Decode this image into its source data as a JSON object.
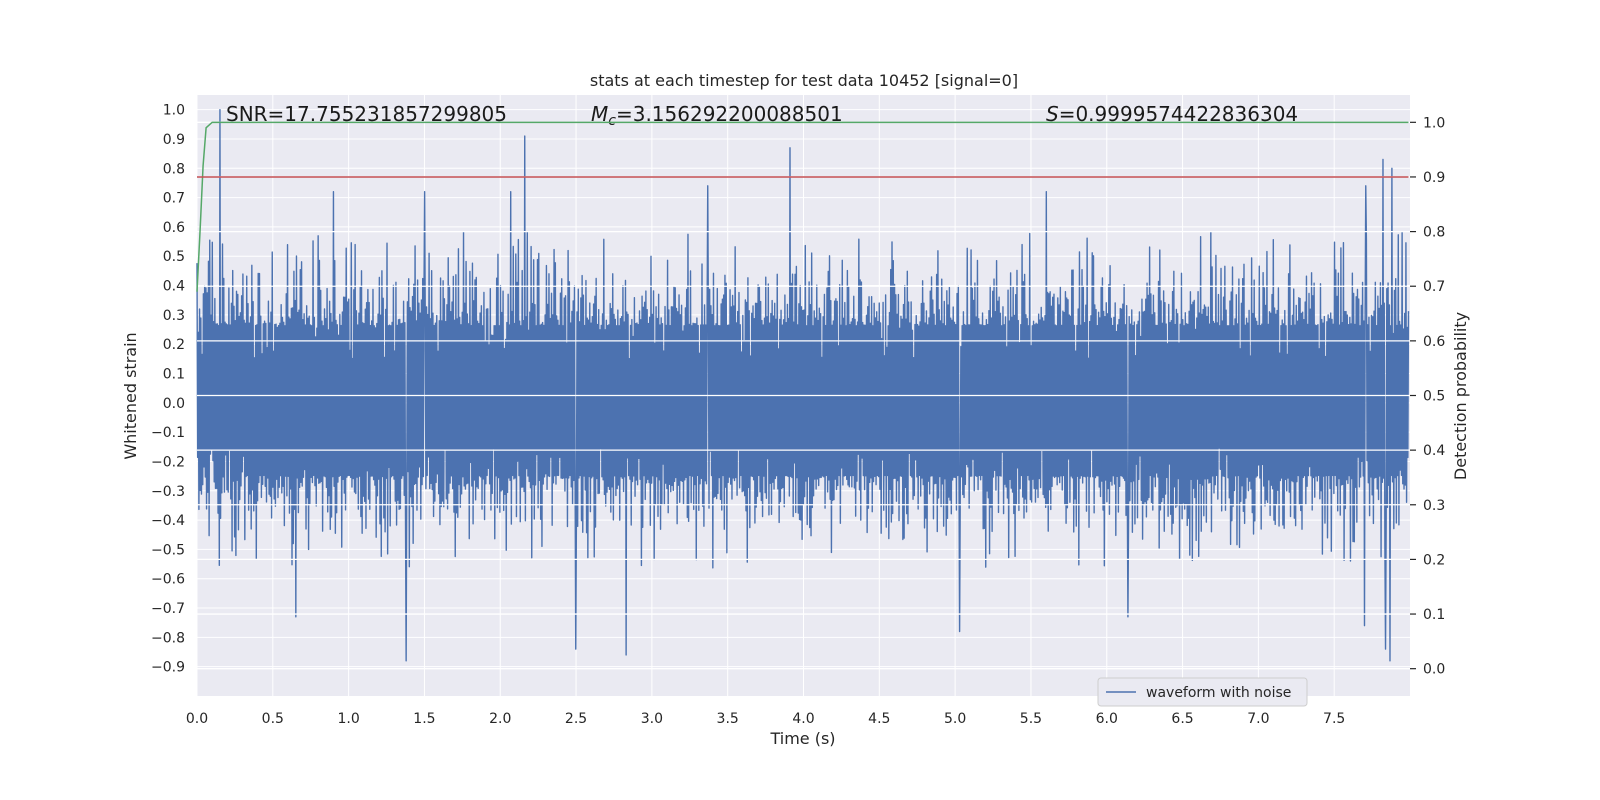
{
  "chart_data": {
    "type": "line",
    "title": "stats at each timestep for test data 10452 [signal=0]",
    "xlabel": "Time (s)",
    "ylabel": "Whitened strain",
    "y2label": "Detection probability",
    "xlim": [
      0.0,
      8.0
    ],
    "ylim": [
      -1.0,
      1.05
    ],
    "y2lim": [
      -0.05,
      1.05
    ],
    "xticks": [
      0.0,
      0.5,
      1.0,
      1.5,
      2.0,
      2.5,
      3.0,
      3.5,
      4.0,
      4.5,
      5.0,
      5.5,
      6.0,
      6.5,
      7.0,
      7.5
    ],
    "yticks": [
      -0.9,
      -0.8,
      -0.7,
      -0.6,
      -0.5,
      -0.4,
      -0.3,
      -0.2,
      -0.1,
      0.0,
      0.1,
      0.2,
      0.3,
      0.4,
      0.5,
      0.6,
      0.7,
      0.8,
      0.9,
      1.0
    ],
    "y2ticks": [
      0.0,
      0.1,
      0.2,
      0.3,
      0.4,
      0.5,
      0.6,
      0.7,
      0.8,
      0.9,
      1.0
    ],
    "grid": true,
    "legend_position": "lower-right",
    "annotations": {
      "snr": "SNR=17.755231857299805",
      "mc_symbol": "M",
      "mc_sub": "c",
      "mc_value": "=3.156292200088501",
      "s_symbol": "S",
      "s_value": "=0.9999574422836304"
    },
    "series": [
      {
        "name": "waveform with noise",
        "axis": "left",
        "color": "#4c72b0",
        "kind": "noise-envelope",
        "t_range": [
          0.0,
          7.99
        ],
        "typical_amplitude": [
          -0.33,
          0.35
        ],
        "peaks": [
          {
            "t": 0.15,
            "v": 1.0
          },
          {
            "t": 2.16,
            "v": 0.91
          },
          {
            "t": 3.91,
            "v": 0.87
          },
          {
            "t": 7.82,
            "v": 0.83
          },
          {
            "t": 7.88,
            "v": 0.8
          },
          {
            "t": 7.71,
            "v": 0.74
          },
          {
            "t": 0.9,
            "v": 0.72
          },
          {
            "t": 1.5,
            "v": 0.72
          },
          {
            "t": 2.07,
            "v": 0.72
          },
          {
            "t": 3.37,
            "v": 0.74
          },
          {
            "t": 5.6,
            "v": 0.72
          },
          {
            "t": 1.38,
            "v": -0.88
          },
          {
            "t": 2.83,
            "v": -0.86
          },
          {
            "t": 2.5,
            "v": -0.84
          },
          {
            "t": 7.84,
            "v": -0.84
          },
          {
            "t": 7.87,
            "v": -0.88
          },
          {
            "t": 5.03,
            "v": -0.78
          },
          {
            "t": 0.65,
            "v": -0.73
          },
          {
            "t": 7.7,
            "v": -0.76
          },
          {
            "t": 6.14,
            "v": -0.73
          }
        ]
      },
      {
        "name": "",
        "axis": "right",
        "color": "#55a868",
        "x": [
          0.0,
          0.02,
          0.04,
          0.06,
          0.1,
          0.2,
          1.0,
          4.0,
          7.99
        ],
        "y": [
          0.69,
          0.8,
          0.92,
          0.99,
          1.0,
          1.0,
          1.0,
          1.0,
          1.0
        ]
      },
      {
        "name": "",
        "axis": "right",
        "color": "#c44e52",
        "x": [
          0.0,
          7.99
        ],
        "y": [
          0.9,
          0.9
        ]
      }
    ]
  }
}
